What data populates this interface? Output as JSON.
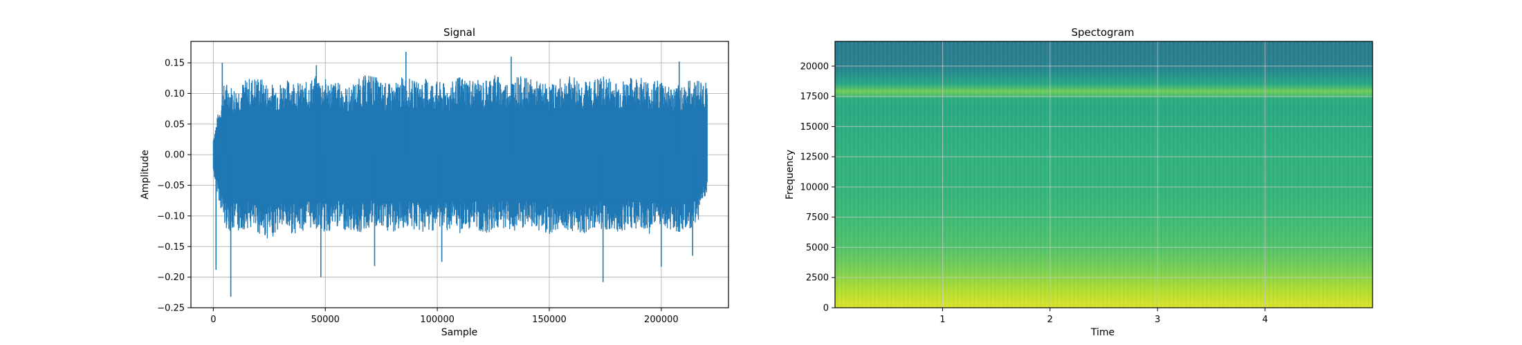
{
  "chart_data": [
    {
      "type": "line",
      "title": "Signal",
      "xlabel": "Sample",
      "ylabel": "Amplitude",
      "xlim": [
        -10000,
        230000
      ],
      "ylim": [
        -0.25,
        0.185
      ],
      "x_ticks": [
        0,
        50000,
        100000,
        150000,
        200000
      ],
      "x_tick_labels": [
        "0",
        "50000",
        "100000",
        "150000",
        "200000"
      ],
      "y_ticks": [
        -0.25,
        -0.2,
        -0.15,
        -0.1,
        -0.05,
        0.0,
        0.05,
        0.1,
        0.15
      ],
      "y_tick_labels": [
        "−0.25",
        "−0.20",
        "−0.15",
        "−0.10",
        "−0.05",
        "0.00",
        "0.05",
        "0.10",
        "0.15"
      ],
      "grid": true,
      "series_color": "#1f77b4",
      "x_range": [
        0,
        220500
      ],
      "envelope_top": [
        0.03,
        0.12,
        0.11,
        0.125,
        0.13,
        0.115,
        0.12,
        0.125,
        0.115,
        0.13,
        0.125,
        0.12,
        0.11,
        0.125,
        0.135,
        0.12,
        0.115,
        0.13,
        0.12,
        0.125,
        0.12,
        0.115,
        0.13,
        0.125,
        0.12,
        0.135,
        0.12,
        0.13,
        0.125,
        0.12,
        0.115,
        0.125,
        0.13,
        0.12,
        0.125,
        0.13,
        0.12,
        0.125,
        0.13,
        0.12,
        0.125,
        0.11,
        0.12,
        0.125,
        0.12
      ],
      "envelope_bottom": [
        -0.03,
        -0.12,
        -0.13,
        -0.12,
        -0.13,
        -0.14,
        -0.12,
        -0.13,
        -0.125,
        -0.12,
        -0.13,
        -0.12,
        -0.125,
        -0.13,
        -0.12,
        -0.125,
        -0.13,
        -0.12,
        -0.125,
        -0.13,
        -0.12,
        -0.125,
        -0.13,
        -0.12,
        -0.13,
        -0.125,
        -0.12,
        -0.13,
        -0.12,
        -0.125,
        -0.13,
        -0.12,
        -0.125,
        -0.13,
        -0.12,
        -0.125,
        -0.13,
        -0.12,
        -0.125,
        -0.13,
        -0.12,
        -0.125,
        -0.13,
        -0.12,
        -0.06
      ],
      "peaks": [
        {
          "x": 86000,
          "y": 0.168
        },
        {
          "x": 133000,
          "y": 0.16
        },
        {
          "x": 4000,
          "y": 0.15
        },
        {
          "x": 208000,
          "y": 0.152
        },
        {
          "x": 46000,
          "y": 0.146
        },
        {
          "x": 7800,
          "y": -0.232
        },
        {
          "x": 174000,
          "y": -0.208
        },
        {
          "x": 1200,
          "y": -0.188
        },
        {
          "x": 48000,
          "y": -0.2
        },
        {
          "x": 200000,
          "y": -0.183
        },
        {
          "x": 214000,
          "y": -0.165
        },
        {
          "x": 72000,
          "y": -0.182
        },
        {
          "x": 102000,
          "y": -0.175
        }
      ]
    },
    {
      "type": "heatmap",
      "title": "Spectogram",
      "xlabel": "Time",
      "ylabel": "Frequency",
      "xlim": [
        0,
        5.0
      ],
      "ylim": [
        0,
        22050
      ],
      "x_ticks": [
        1,
        2,
        3,
        4
      ],
      "x_tick_labels": [
        "1",
        "2",
        "3",
        "4"
      ],
      "y_ticks": [
        0,
        2500,
        5000,
        7500,
        10000,
        12500,
        15000,
        17500,
        20000
      ],
      "y_tick_labels": [
        "0",
        "2500",
        "5000",
        "7500",
        "10000",
        "12500",
        "15000",
        "17500",
        "20000"
      ],
      "grid": true,
      "colormap": "viridis",
      "frequency_profile": [
        {
          "f": 0,
          "level": 0.95
        },
        {
          "f": 1500,
          "level": 0.88
        },
        {
          "f": 3000,
          "level": 0.8
        },
        {
          "f": 5000,
          "level": 0.72
        },
        {
          "f": 7500,
          "level": 0.68
        },
        {
          "f": 10000,
          "level": 0.65
        },
        {
          "f": 12500,
          "level": 0.64
        },
        {
          "f": 15000,
          "level": 0.62
        },
        {
          "f": 16500,
          "level": 0.6
        },
        {
          "f": 17300,
          "level": 0.62
        },
        {
          "f": 17900,
          "level": 0.78
        },
        {
          "f": 18500,
          "level": 0.6
        },
        {
          "f": 19300,
          "level": 0.5
        },
        {
          "f": 20000,
          "level": 0.43
        },
        {
          "f": 22050,
          "level": 0.42
        }
      ]
    }
  ]
}
